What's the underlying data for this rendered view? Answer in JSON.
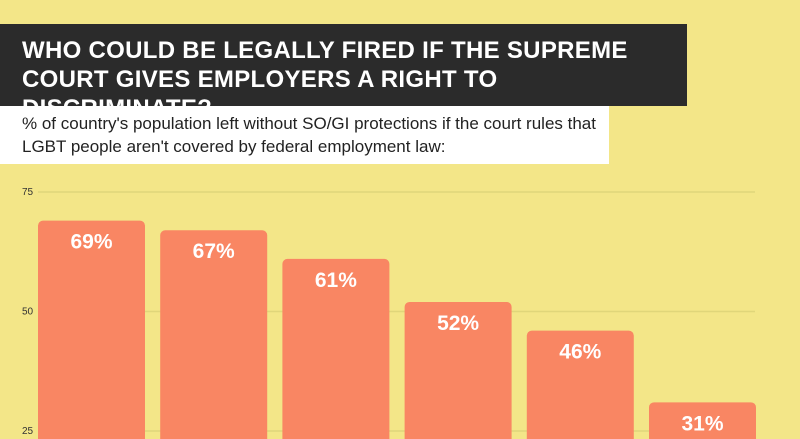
{
  "header": {
    "title": "WHO COULD BE LEGALLY FIRED IF THE SUPREME COURT GIVES EMPLOYERS A RIGHT TO DISCRIMINATE?",
    "subtitle": "% of country's population left without SO/GI protections if the court rules that LGBT people aren't covered by federal employment law:"
  },
  "colors": {
    "background": "#f3e688",
    "bar": "#f98663",
    "grid": "#e0d67a",
    "title_bg": "#2b2b2b",
    "bar_label": "#ffffff",
    "tick_label": "#333333"
  },
  "chart_data": {
    "type": "bar",
    "title": "WHO COULD BE LEGALLY FIRED IF THE SUPREME COURT GIVES EMPLOYERS A RIGHT TO DISCRIMINATE?",
    "subtitle": "% of country's population left without SO/GI protections if the court rules that LGBT people aren't covered by federal employment law:",
    "xlabel": "",
    "ylabel": "",
    "y_ticks": [
      75,
      50,
      25
    ],
    "ylim": [
      25,
      75
    ],
    "grid": true,
    "values": [
      69,
      67,
      61,
      52,
      46,
      31
    ],
    "value_labels": [
      "69%",
      "67%",
      "61%",
      "52%",
      "46%",
      "31%"
    ]
  }
}
